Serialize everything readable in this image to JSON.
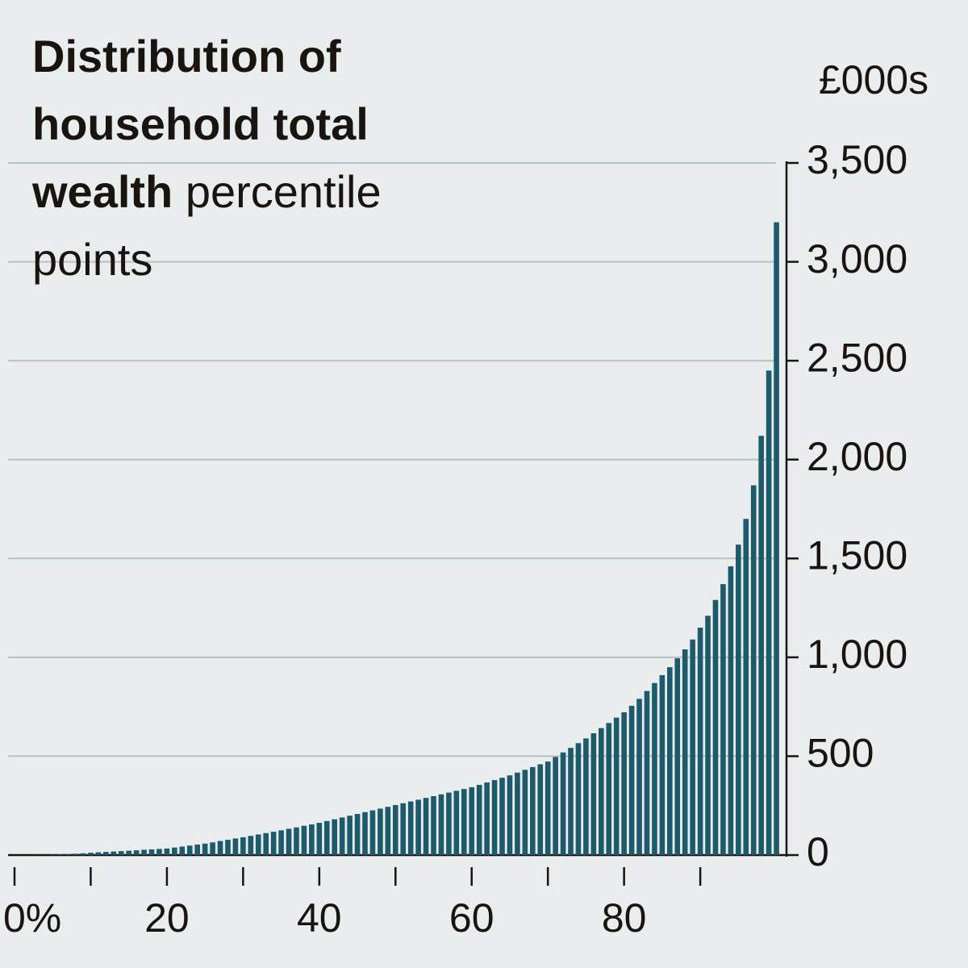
{
  "chart_data": {
    "type": "bar",
    "title": "Distribution of household total wealth",
    "subtitle": "percentile points",
    "y_label": "£000s",
    "color": "#1d5a6b",
    "grid": true,
    "x": [
      1,
      2,
      3,
      4,
      5,
      6,
      7,
      8,
      9,
      10,
      11,
      12,
      13,
      14,
      15,
      16,
      17,
      18,
      19,
      20,
      21,
      22,
      23,
      24,
      25,
      26,
      27,
      28,
      29,
      30,
      31,
      32,
      33,
      34,
      35,
      36,
      37,
      38,
      39,
      40,
      41,
      42,
      43,
      44,
      45,
      46,
      47,
      48,
      49,
      50,
      51,
      52,
      53,
      54,
      55,
      56,
      57,
      58,
      59,
      60,
      61,
      62,
      63,
      64,
      65,
      66,
      67,
      68,
      69,
      70,
      71,
      72,
      73,
      74,
      75,
      76,
      77,
      78,
      79,
      80,
      81,
      82,
      83,
      84,
      85,
      86,
      87,
      88,
      89,
      90,
      91,
      92,
      93,
      94,
      95,
      96,
      97,
      98,
      99,
      100
    ],
    "values": [
      0,
      0,
      1,
      1,
      2,
      3,
      5,
      7,
      9,
      12,
      14,
      16,
      18,
      20,
      22,
      24,
      27,
      29,
      31,
      33,
      38,
      43,
      48,
      53,
      58,
      64,
      71,
      77,
      84,
      90,
      97,
      104,
      111,
      118,
      125,
      133,
      140,
      148,
      155,
      163,
      172,
      181,
      190,
      199,
      208,
      217,
      226,
      235,
      244,
      253,
      262,
      271,
      280,
      289,
      298,
      307,
      316,
      325,
      334,
      343,
      355,
      367,
      379,
      391,
      403,
      417,
      431,
      445,
      459,
      473,
      496,
      519,
      542,
      566,
      590,
      616,
      642,
      668,
      695,
      722,
      755,
      790,
      830,
      870,
      910,
      950,
      995,
      1040,
      1090,
      1150,
      1210,
      1290,
      1370,
      1460,
      1570,
      1700,
      1870,
      2120,
      2450,
      3200
    ],
    "xlim": [
      0,
      101
    ],
    "xticks": [
      {
        "value": 0,
        "label": "0%"
      },
      {
        "value": 10,
        "label": null
      },
      20,
      {
        "value": 30,
        "label": null
      },
      40,
      {
        "value": 50,
        "label": null
      },
      60,
      {
        "value": 70,
        "label": null
      },
      80,
      {
        "value": 90,
        "label": null
      }
    ],
    "ylim": [
      0,
      3500
    ],
    "yticks": [
      0,
      500,
      {
        "value": 1000,
        "label": "1,000"
      },
      {
        "value": 1500,
        "label": "1,500"
      },
      {
        "value": 2000,
        "label": "2,000"
      },
      {
        "value": 2500,
        "label": "2,500"
      },
      {
        "value": 3000,
        "label": "3,000"
      },
      {
        "value": 3500,
        "label": "3,500"
      }
    ]
  }
}
